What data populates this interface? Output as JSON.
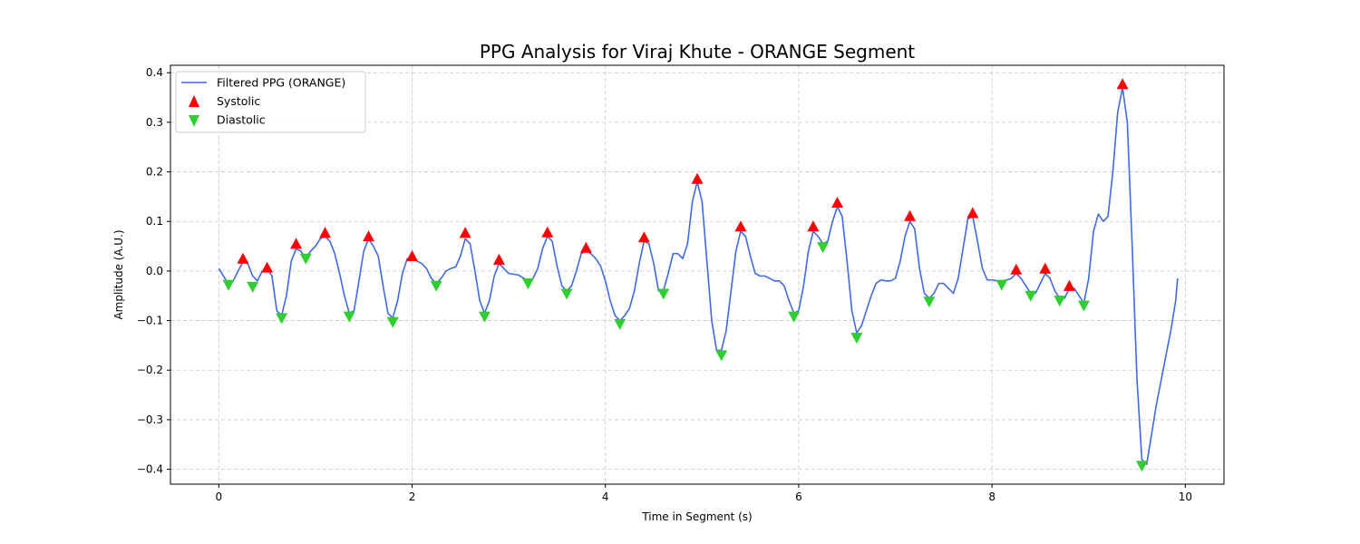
{
  "chart_data": {
    "type": "line",
    "title": "PPG Analysis for Viraj Khute - ORANGE Segment",
    "xlabel": "Time in Segment (s)",
    "ylabel": "Amplitude (A.U.)",
    "xlim": [
      -0.5,
      10.4
    ],
    "ylim": [
      -0.43,
      0.415
    ],
    "xticks": [
      0,
      2,
      4,
      6,
      8,
      10
    ],
    "xtick_labels": [
      "0",
      "2",
      "4",
      "6",
      "8",
      "10"
    ],
    "yticks": [
      0.4,
      0.3,
      0.2,
      0.1,
      0.0,
      -0.1,
      -0.2,
      -0.3,
      -0.4
    ],
    "ytick_labels": [
      "0.4",
      "0.3",
      "0.2",
      "0.1",
      "0.0",
      "−0.1",
      "−0.2",
      "−0.3",
      "−0.4"
    ],
    "grid": true,
    "legend_position": "top-left",
    "colors": {
      "line": "#4169e1",
      "systolic": "#ff0000",
      "diastolic": "#32cd32"
    },
    "series": [
      {
        "name": "Filtered PPG (ORANGE)",
        "type": "line",
        "points": [
          [
            0.0,
            0.005
          ],
          [
            0.08,
            -0.02
          ],
          [
            0.15,
            -0.02
          ],
          [
            0.2,
            0.0
          ],
          [
            0.25,
            0.018
          ],
          [
            0.3,
            0.015
          ],
          [
            0.35,
            -0.01
          ],
          [
            0.4,
            -0.02
          ],
          [
            0.45,
            0.0
          ],
          [
            0.5,
            0.005
          ],
          [
            0.55,
            -0.01
          ],
          [
            0.6,
            -0.08
          ],
          [
            0.65,
            -0.09
          ],
          [
            0.7,
            -0.05
          ],
          [
            0.75,
            0.02
          ],
          [
            0.8,
            0.045
          ],
          [
            0.85,
            0.04
          ],
          [
            0.9,
            0.025
          ],
          [
            0.95,
            0.04
          ],
          [
            1.0,
            0.05
          ],
          [
            1.05,
            0.065
          ],
          [
            1.1,
            0.07
          ],
          [
            1.15,
            0.06
          ],
          [
            1.2,
            0.035
          ],
          [
            1.25,
            -0.005
          ],
          [
            1.3,
            -0.05
          ],
          [
            1.35,
            -0.085
          ],
          [
            1.4,
            -0.08
          ],
          [
            1.45,
            -0.02
          ],
          [
            1.5,
            0.04
          ],
          [
            1.55,
            0.065
          ],
          [
            1.6,
            0.05
          ],
          [
            1.65,
            0.03
          ],
          [
            1.7,
            -0.03
          ],
          [
            1.75,
            -0.085
          ],
          [
            1.8,
            -0.095
          ],
          [
            1.85,
            -0.06
          ],
          [
            1.9,
            -0.005
          ],
          [
            1.95,
            0.025
          ],
          [
            2.0,
            0.025
          ],
          [
            2.05,
            0.02
          ],
          [
            2.1,
            0.015
          ],
          [
            2.15,
            0.005
          ],
          [
            2.2,
            -0.015
          ],
          [
            2.25,
            -0.025
          ],
          [
            2.3,
            -0.015
          ],
          [
            2.35,
            0.0
          ],
          [
            2.4,
            0.005
          ],
          [
            2.45,
            0.008
          ],
          [
            2.5,
            0.03
          ],
          [
            2.55,
            0.065
          ],
          [
            2.6,
            0.055
          ],
          [
            2.65,
            0.0
          ],
          [
            2.7,
            -0.06
          ],
          [
            2.75,
            -0.085
          ],
          [
            2.8,
            -0.06
          ],
          [
            2.85,
            -0.01
          ],
          [
            2.9,
            0.015
          ],
          [
            2.95,
            0.005
          ],
          [
            3.0,
            -0.005
          ],
          [
            3.1,
            -0.008
          ],
          [
            3.2,
            -0.02
          ],
          [
            3.25,
            -0.015
          ],
          [
            3.3,
            0.005
          ],
          [
            3.35,
            0.045
          ],
          [
            3.4,
            0.07
          ],
          [
            3.45,
            0.06
          ],
          [
            3.5,
            0.01
          ],
          [
            3.55,
            -0.03
          ],
          [
            3.6,
            -0.04
          ],
          [
            3.65,
            -0.03
          ],
          [
            3.7,
            0.0
          ],
          [
            3.75,
            0.035
          ],
          [
            3.8,
            0.04
          ],
          [
            3.85,
            0.035
          ],
          [
            3.9,
            0.025
          ],
          [
            3.95,
            0.01
          ],
          [
            4.0,
            -0.02
          ],
          [
            4.05,
            -0.06
          ],
          [
            4.1,
            -0.09
          ],
          [
            4.15,
            -0.1
          ],
          [
            4.2,
            -0.09
          ],
          [
            4.25,
            -0.075
          ],
          [
            4.3,
            -0.04
          ],
          [
            4.35,
            0.015
          ],
          [
            4.4,
            0.06
          ],
          [
            4.45,
            0.055
          ],
          [
            4.5,
            0.015
          ],
          [
            4.55,
            -0.04
          ],
          [
            4.6,
            -0.04
          ],
          [
            4.65,
            -0.005
          ],
          [
            4.7,
            0.035
          ],
          [
            4.75,
            0.035
          ],
          [
            4.8,
            0.025
          ],
          [
            4.85,
            0.055
          ],
          [
            4.9,
            0.14
          ],
          [
            4.95,
            0.18
          ],
          [
            5.0,
            0.14
          ],
          [
            5.05,
            0.02
          ],
          [
            5.1,
            -0.1
          ],
          [
            5.15,
            -0.16
          ],
          [
            5.2,
            -0.16
          ],
          [
            5.25,
            -0.12
          ],
          [
            5.3,
            -0.04
          ],
          [
            5.35,
            0.04
          ],
          [
            5.4,
            0.08
          ],
          [
            5.45,
            0.07
          ],
          [
            5.5,
            0.03
          ],
          [
            5.55,
            -0.005
          ],
          [
            5.6,
            -0.01
          ],
          [
            5.65,
            -0.01
          ],
          [
            5.7,
            -0.015
          ],
          [
            5.75,
            -0.02
          ],
          [
            5.8,
            -0.02
          ],
          [
            5.85,
            -0.03
          ],
          [
            5.9,
            -0.06
          ],
          [
            5.95,
            -0.085
          ],
          [
            6.0,
            -0.08
          ],
          [
            6.05,
            -0.03
          ],
          [
            6.1,
            0.04
          ],
          [
            6.15,
            0.08
          ],
          [
            6.2,
            0.07
          ],
          [
            6.25,
            0.055
          ],
          [
            6.3,
            0.06
          ],
          [
            6.35,
            0.1
          ],
          [
            6.4,
            0.13
          ],
          [
            6.45,
            0.11
          ],
          [
            6.5,
            0.02
          ],
          [
            6.55,
            -0.08
          ],
          [
            6.6,
            -0.125
          ],
          [
            6.65,
            -0.11
          ],
          [
            6.7,
            -0.08
          ],
          [
            6.75,
            -0.05
          ],
          [
            6.8,
            -0.025
          ],
          [
            6.85,
            -0.018
          ],
          [
            6.9,
            -0.02
          ],
          [
            6.95,
            -0.02
          ],
          [
            7.0,
            -0.015
          ],
          [
            7.05,
            0.02
          ],
          [
            7.1,
            0.07
          ],
          [
            7.15,
            0.1
          ],
          [
            7.2,
            0.085
          ],
          [
            7.25,
            0.005
          ],
          [
            7.3,
            -0.045
          ],
          [
            7.35,
            -0.055
          ],
          [
            7.4,
            -0.045
          ],
          [
            7.45,
            -0.025
          ],
          [
            7.5,
            -0.025
          ],
          [
            7.55,
            -0.035
          ],
          [
            7.6,
            -0.045
          ],
          [
            7.65,
            -0.015
          ],
          [
            7.7,
            0.045
          ],
          [
            7.75,
            0.105
          ],
          [
            7.8,
            0.11
          ],
          [
            7.85,
            0.06
          ],
          [
            7.9,
            0.005
          ],
          [
            7.95,
            -0.018
          ],
          [
            8.0,
            -0.018
          ],
          [
            8.05,
            -0.02
          ],
          [
            8.1,
            -0.02
          ],
          [
            8.15,
            -0.018
          ],
          [
            8.2,
            -0.015
          ],
          [
            8.25,
            -0.005
          ],
          [
            8.3,
            -0.015
          ],
          [
            8.35,
            -0.03
          ],
          [
            8.4,
            -0.045
          ],
          [
            8.45,
            -0.045
          ],
          [
            8.5,
            -0.025
          ],
          [
            8.55,
            -0.005
          ],
          [
            8.6,
            -0.015
          ],
          [
            8.65,
            -0.04
          ],
          [
            8.7,
            -0.055
          ],
          [
            8.75,
            -0.055
          ],
          [
            8.8,
            -0.035
          ],
          [
            8.85,
            -0.035
          ],
          [
            8.9,
            -0.05
          ],
          [
            8.95,
            -0.065
          ],
          [
            9.0,
            -0.015
          ],
          [
            9.05,
            0.08
          ],
          [
            9.1,
            0.115
          ],
          [
            9.15,
            0.1
          ],
          [
            9.2,
            0.11
          ],
          [
            9.25,
            0.2
          ],
          [
            9.3,
            0.32
          ],
          [
            9.35,
            0.37
          ],
          [
            9.4,
            0.3
          ],
          [
            9.45,
            0.05
          ],
          [
            9.5,
            -0.22
          ],
          [
            9.55,
            -0.38
          ],
          [
            9.6,
            -0.39
          ],
          [
            9.65,
            -0.33
          ],
          [
            9.7,
            -0.27
          ],
          [
            9.75,
            -0.22
          ],
          [
            9.8,
            -0.17
          ],
          [
            9.85,
            -0.12
          ],
          [
            9.9,
            -0.06
          ],
          [
            9.92,
            -0.015
          ]
        ]
      },
      {
        "name": "Systolic",
        "type": "scatter",
        "marker": "triangle-up",
        "points": [
          [
            0.25,
            0.025
          ],
          [
            0.5,
            0.007
          ],
          [
            0.8,
            0.055
          ],
          [
            1.1,
            0.077
          ],
          [
            1.55,
            0.07
          ],
          [
            2.0,
            0.03
          ],
          [
            2.55,
            0.077
          ],
          [
            2.9,
            0.023
          ],
          [
            3.4,
            0.078
          ],
          [
            3.8,
            0.047
          ],
          [
            4.4,
            0.068
          ],
          [
            4.95,
            0.186
          ],
          [
            5.4,
            0.09
          ],
          [
            6.15,
            0.09
          ],
          [
            6.4,
            0.138
          ],
          [
            7.15,
            0.111
          ],
          [
            7.8,
            0.117
          ],
          [
            8.25,
            0.003
          ],
          [
            8.55,
            0.005
          ],
          [
            8.8,
            -0.03
          ],
          [
            9.35,
            0.377
          ]
        ]
      },
      {
        "name": "Diastolic",
        "type": "scatter",
        "marker": "triangle-down",
        "points": [
          [
            0.1,
            -0.028
          ],
          [
            0.35,
            -0.032
          ],
          [
            0.65,
            -0.095
          ],
          [
            0.9,
            0.025
          ],
          [
            1.35,
            -0.092
          ],
          [
            1.8,
            -0.103
          ],
          [
            2.25,
            -0.03
          ],
          [
            2.75,
            -0.092
          ],
          [
            3.2,
            -0.025
          ],
          [
            3.6,
            -0.046
          ],
          [
            4.15,
            -0.107
          ],
          [
            4.6,
            -0.046
          ],
          [
            5.2,
            -0.17
          ],
          [
            5.95,
            -0.092
          ],
          [
            6.25,
            0.048
          ],
          [
            6.6,
            -0.135
          ],
          [
            7.35,
            -0.062
          ],
          [
            8.1,
            -0.028
          ],
          [
            8.4,
            -0.05
          ],
          [
            8.7,
            -0.06
          ],
          [
            8.95,
            -0.07
          ],
          [
            9.55,
            -0.393
          ]
        ]
      }
    ]
  }
}
